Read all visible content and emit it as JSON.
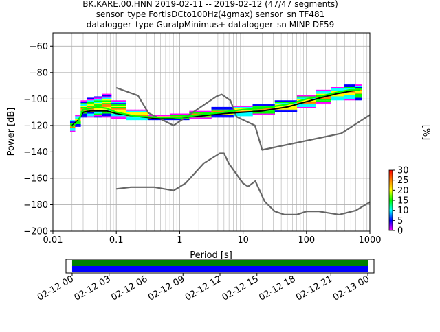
{
  "title": {
    "line1": "BK.KARE.00.HNN   2019-02-11 -- 2019-02-12  (47/47 segments)",
    "line2": "sensor_type FortisDCto100Hz(4gmax) sensor_sn TF481",
    "line3": "datalogger_type GuralpMinimus+ datalogger_sn MINP-DF59"
  },
  "chart_data": [
    {
      "type": "heatmap",
      "xlabel": "Period [s]",
      "ylabel": "Power [dB]",
      "x_scale": "log",
      "xlim": [
        0.01,
        1000
      ],
      "ylim": [
        -200,
        -50
      ],
      "x_ticks": [
        {
          "value": 0.01,
          "label": "0.01"
        },
        {
          "value": 0.1,
          "label": "0.1"
        },
        {
          "value": 1,
          "label": "1"
        },
        {
          "value": 10,
          "label": "10"
        },
        {
          "value": 100,
          "label": "100"
        },
        {
          "value": 1000,
          "label": "1000"
        }
      ],
      "y_ticks": [
        -60,
        -80,
        -100,
        -120,
        -140,
        -160,
        -180,
        -200
      ],
      "grid": true,
      "colorbar": {
        "label": "[%]",
        "range": [
          0,
          30
        ],
        "ticks": [
          0,
          5,
          10,
          15,
          20,
          25,
          30
        ],
        "colors": [
          "#ffffff",
          "#ff00ff",
          "#0000ff",
          "#00ffff",
          "#00ff00",
          "#ffff00",
          "#ff8000",
          "#ff0000"
        ]
      },
      "series": [
        {
          "name": "noise_model_high",
          "color": "#666666",
          "x": [
            0.1,
            0.22,
            0.32,
            0.8,
            3.8,
            4.6,
            6.3,
            7.9,
            15.4,
            20,
            354.8,
            1000
          ],
          "y": [
            -91.5,
            -97.4,
            -110.5,
            -120,
            -98,
            -96.5,
            -101,
            -113.5,
            -120,
            -138.5,
            -126,
            -112
          ]
        },
        {
          "name": "noise_model_low",
          "color": "#666666",
          "x": [
            0.1,
            0.17,
            0.4,
            0.8,
            1.24,
            2.4,
            4.3,
            5,
            6,
            10,
            12,
            15.6,
            21.9,
            31.6,
            45,
            70,
            101,
            154,
            328,
            600,
            1000
          ],
          "y": [
            -168,
            -166.7,
            -166.7,
            -169.2,
            -163.7,
            -148.6,
            -141.1,
            -141.1,
            -149,
            -163.8,
            -166.2,
            -162.1,
            -177.5,
            -185,
            -187.5,
            -187.5,
            -185,
            -185,
            -187.5,
            -184.4,
            -178
          ]
        },
        {
          "name": "mean",
          "color": "#000000",
          "x": [
            0.02,
            0.025,
            0.03,
            0.04,
            0.05,
            0.07,
            0.1,
            0.2,
            0.5,
            1,
            2,
            5,
            10,
            20,
            50,
            100,
            200,
            300,
            500,
            700
          ],
          "y": [
            -120,
            -116,
            -110,
            -109,
            -109,
            -109,
            -111,
            -113,
            -115,
            -114,
            -113,
            -111,
            -110,
            -109,
            -106,
            -102,
            -98,
            -96,
            -94,
            -93
          ]
        },
        {
          "name": "mode",
          "color": "#00ff00",
          "x": [
            0.02,
            0.025,
            0.03,
            0.04,
            0.05,
            0.07,
            0.1,
            0.2,
            0.5,
            1,
            2,
            5,
            10,
            20,
            50,
            100,
            200,
            300,
            500,
            700
          ],
          "y": [
            -121,
            -117,
            -108,
            -107,
            -106,
            -107,
            -110,
            -113,
            -114,
            -114,
            -112,
            -110,
            -108,
            -107,
            -104,
            -100,
            -97,
            -95,
            -93,
            -93
          ]
        }
      ],
      "density": {
        "x": [
          0.02,
          0.025,
          0.03,
          0.04,
          0.05,
          0.07,
          0.1,
          0.2,
          0.5,
          1,
          2,
          5,
          10,
          20,
          50,
          100,
          200,
          300,
          500,
          700
        ],
        "low": [
          -125,
          -121,
          -114,
          -114,
          -114,
          -114,
          -115,
          -116,
          -116,
          -116,
          -115,
          -114,
          -113,
          -112,
          -110,
          -107,
          -104,
          -101,
          -101,
          -101
        ],
        "high": [
          -116,
          -112,
          -101,
          -99,
          -98,
          -96,
          -101,
          -108,
          -112,
          -111,
          -109,
          -106,
          -105,
          -104,
          -101,
          -97,
          -93,
          -91,
          -89,
          -89
        ]
      }
    },
    {
      "type": "timeline",
      "x_ticks": [
        "02-12 00",
        "02-12 03",
        "02-12 06",
        "02-12 09",
        "02-12 12",
        "02-12 15",
        "02-12 18",
        "02-12 21",
        "02-13 00"
      ],
      "x_range_hours": [
        -0.5,
        24.5
      ],
      "bars": [
        {
          "color": "#008000",
          "start_hour": 0,
          "end_hour": 24
        },
        {
          "color": "#0000ff",
          "start_hour": 0,
          "end_hour": 24
        }
      ]
    }
  ]
}
